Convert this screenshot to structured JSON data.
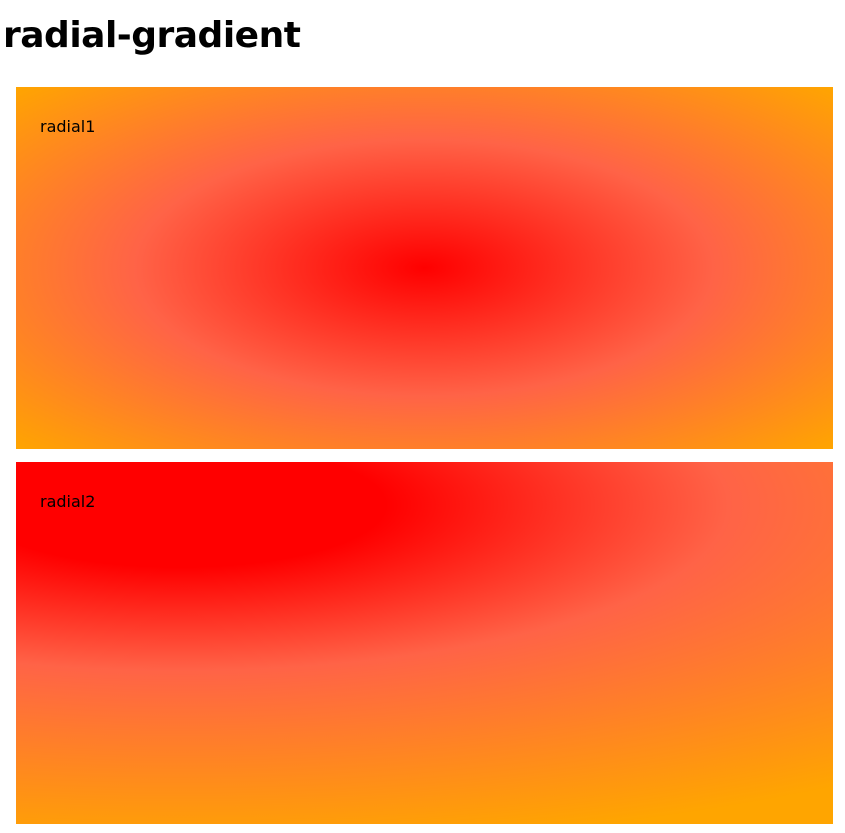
{
  "page": {
    "title": "radial-gradient"
  },
  "boxes": [
    {
      "label": "radial1",
      "colors": [
        "#ff0000",
        "#ff6347",
        "#ffa500"
      ]
    },
    {
      "label": "radial2",
      "colors": [
        "#ff0000",
        "#ff6347",
        "#ffa500"
      ]
    }
  ]
}
